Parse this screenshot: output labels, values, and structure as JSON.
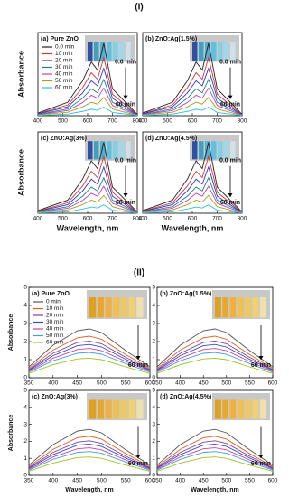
{
  "figure_labels": [
    "(I)",
    "(II)"
  ],
  "chart_data": [
    {
      "type": "line",
      "title": "(a) Pure ZnO",
      "ylabel": "Absorbance",
      "legend": true,
      "x": [
        400,
        520,
        580,
        615,
        640,
        665,
        700,
        800
      ],
      "xlim": [
        400,
        800
      ],
      "xticks": [
        400,
        500,
        600,
        700,
        800
      ],
      "ylim": [
        0,
        3.1
      ],
      "annotations": [
        "0.0 min",
        "60 min"
      ],
      "series": [
        {
          "name": "0.0 min",
          "color": "#222222",
          "values": [
            0.1,
            0.5,
            1.3,
            2.0,
            1.7,
            2.7,
            1.0,
            0.05
          ]
        },
        {
          "name": "10 min",
          "color": "#e03030",
          "values": [
            0.08,
            0.4,
            1.04,
            1.6,
            1.36,
            2.16,
            0.8,
            0.04
          ]
        },
        {
          "name": "20 min",
          "color": "#3030d0",
          "values": [
            0.07,
            0.33,
            0.85,
            1.3,
            1.11,
            1.76,
            0.65,
            0.03
          ]
        },
        {
          "name": "30 min",
          "color": "#208080",
          "values": [
            0.05,
            0.25,
            0.65,
            1.0,
            0.85,
            1.35,
            0.5,
            0.03
          ]
        },
        {
          "name": "40 min",
          "color": "#c040c0",
          "values": [
            0.04,
            0.19,
            0.49,
            0.76,
            0.65,
            1.03,
            0.38,
            0.02
          ]
        },
        {
          "name": "50 min",
          "color": "#a0a020",
          "values": [
            0.03,
            0.13,
            0.33,
            0.5,
            0.43,
            0.68,
            0.25,
            0.01
          ]
        },
        {
          "name": "60 min",
          "color": "#30c0e0",
          "values": [
            0.01,
            0.06,
            0.16,
            0.24,
            0.2,
            0.32,
            0.12,
            0.01
          ]
        }
      ]
    },
    {
      "type": "line",
      "title": "(b) ZnO:Ag(1.5%)",
      "x": [
        400,
        520,
        580,
        615,
        640,
        665,
        700,
        800
      ],
      "xlim": [
        400,
        800
      ],
      "xticks": [
        400,
        500,
        600,
        700,
        800
      ],
      "ylim": [
        0,
        3.1
      ],
      "annotations": [
        "0.0 min",
        "60 min"
      ],
      "series": [
        {
          "color": "#222222",
          "values": [
            0.1,
            0.5,
            1.3,
            2.0,
            1.7,
            2.7,
            1.0,
            0.05
          ]
        },
        {
          "color": "#e03030",
          "values": [
            0.08,
            0.4,
            1.04,
            1.6,
            1.36,
            2.16,
            0.8,
            0.04
          ]
        },
        {
          "color": "#3030d0",
          "values": [
            0.07,
            0.33,
            0.85,
            1.3,
            1.11,
            1.76,
            0.65,
            0.03
          ]
        },
        {
          "color": "#208080",
          "values": [
            0.05,
            0.25,
            0.65,
            1.0,
            0.85,
            1.35,
            0.5,
            0.03
          ]
        },
        {
          "color": "#c040c0",
          "values": [
            0.04,
            0.19,
            0.49,
            0.76,
            0.65,
            1.03,
            0.38,
            0.02
          ]
        },
        {
          "color": "#a0a020",
          "values": [
            0.03,
            0.13,
            0.33,
            0.5,
            0.43,
            0.68,
            0.25,
            0.01
          ]
        },
        {
          "color": "#30c0e0",
          "values": [
            0.01,
            0.06,
            0.16,
            0.24,
            0.2,
            0.32,
            0.12,
            0.01
          ]
        }
      ]
    },
    {
      "type": "line",
      "title": "(c) ZnO:Ag(3%)",
      "ylabel": "Absorbance",
      "xlabel": "Wavelength, nm",
      "x": [
        400,
        520,
        580,
        615,
        640,
        665,
        700,
        800
      ],
      "xlim": [
        400,
        800
      ],
      "xticks": [
        400,
        500,
        600,
        700,
        800
      ],
      "ylim": [
        0,
        3.1
      ],
      "annotations": [
        "0.0 min",
        "60 min"
      ],
      "series": [
        {
          "color": "#222222",
          "values": [
            0.1,
            0.5,
            1.3,
            2.0,
            1.7,
            2.7,
            1.0,
            0.05
          ]
        },
        {
          "color": "#e03030",
          "values": [
            0.08,
            0.4,
            1.04,
            1.6,
            1.36,
            2.16,
            0.8,
            0.04
          ]
        },
        {
          "color": "#3030d0",
          "values": [
            0.07,
            0.33,
            0.85,
            1.3,
            1.11,
            1.76,
            0.65,
            0.03
          ]
        },
        {
          "color": "#208080",
          "values": [
            0.05,
            0.25,
            0.65,
            1.0,
            0.85,
            1.35,
            0.5,
            0.03
          ]
        },
        {
          "color": "#c040c0",
          "values": [
            0.04,
            0.19,
            0.49,
            0.76,
            0.65,
            1.03,
            0.38,
            0.02
          ]
        },
        {
          "color": "#a0a020",
          "values": [
            0.03,
            0.13,
            0.33,
            0.5,
            0.43,
            0.68,
            0.25,
            0.01
          ]
        },
        {
          "color": "#30c0e0",
          "values": [
            0.01,
            0.06,
            0.16,
            0.24,
            0.2,
            0.32,
            0.12,
            0.01
          ]
        }
      ]
    },
    {
      "type": "line",
      "title": "(d) ZnO:Ag(4.5%)",
      "xlabel": "Wavelength, nm",
      "x": [
        400,
        520,
        580,
        615,
        640,
        665,
        700,
        800
      ],
      "xlim": [
        400,
        800
      ],
      "xticks": [
        400,
        500,
        600,
        700,
        800
      ],
      "ylim": [
        0,
        3.1
      ],
      "annotations": [
        "0.0 min",
        "60 min"
      ],
      "series": [
        {
          "color": "#222222",
          "values": [
            0.1,
            0.5,
            1.3,
            2.0,
            1.7,
            2.7,
            1.0,
            0.05
          ]
        },
        {
          "color": "#e03030",
          "values": [
            0.08,
            0.4,
            1.04,
            1.6,
            1.36,
            2.16,
            0.8,
            0.04
          ]
        },
        {
          "color": "#3030d0",
          "values": [
            0.07,
            0.33,
            0.85,
            1.3,
            1.11,
            1.76,
            0.65,
            0.03
          ]
        },
        {
          "color": "#208080",
          "values": [
            0.05,
            0.25,
            0.65,
            1.0,
            0.85,
            1.35,
            0.5,
            0.03
          ]
        },
        {
          "color": "#c040c0",
          "values": [
            0.04,
            0.19,
            0.49,
            0.76,
            0.65,
            1.03,
            0.38,
            0.02
          ]
        },
        {
          "color": "#a0a020",
          "values": [
            0.03,
            0.13,
            0.33,
            0.5,
            0.43,
            0.68,
            0.25,
            0.01
          ]
        },
        {
          "color": "#30c0e0",
          "values": [
            0.01,
            0.06,
            0.16,
            0.24,
            0.2,
            0.32,
            0.12,
            0.01
          ]
        }
      ]
    },
    {
      "type": "line",
      "title": "(a) Pure ZnO",
      "ylabel": "Absorbance",
      "legend": true,
      "x": [
        350,
        400,
        450,
        475,
        500,
        550,
        600
      ],
      "xlim": [
        350,
        600
      ],
      "xticks": [
        350,
        400,
        450,
        500,
        550,
        600
      ],
      "ylim": [
        0,
        5
      ],
      "yticks": [
        0,
        1,
        2,
        3,
        4,
        5
      ],
      "annotations": [
        "60 min"
      ],
      "series": [
        {
          "name": "0  min",
          "color": "#555555",
          "values": [
            0.6,
            1.8,
            2.6,
            2.7,
            2.5,
            1.5,
            0.6
          ]
        },
        {
          "name": "10 min",
          "color": "#e06020",
          "values": [
            0.51,
            1.53,
            2.21,
            2.3,
            2.13,
            1.28,
            0.51
          ]
        },
        {
          "name": "20 min",
          "color": "#8040a0",
          "values": [
            0.45,
            1.35,
            1.95,
            2.03,
            1.88,
            1.13,
            0.45
          ]
        },
        {
          "name": "30 min",
          "color": "#3050c0",
          "values": [
            0.41,
            1.22,
            1.77,
            1.84,
            1.7,
            1.02,
            0.41
          ]
        },
        {
          "name": "40 min",
          "color": "#d040a0",
          "values": [
            0.36,
            1.08,
            1.56,
            1.62,
            1.5,
            0.9,
            0.36
          ]
        },
        {
          "name": "50 min",
          "color": "#40a0e0",
          "values": [
            0.31,
            0.94,
            1.35,
            1.4,
            1.3,
            0.78,
            0.31
          ]
        },
        {
          "name": "60 min",
          "color": "#a0c020",
          "values": [
            0.24,
            0.72,
            1.04,
            1.08,
            1.0,
            0.6,
            0.24
          ]
        }
      ]
    },
    {
      "type": "line",
      "title": "(b) ZnO:Ag(1.5%)",
      "x": [
        350,
        400,
        450,
        475,
        500,
        550,
        600
      ],
      "xlim": [
        350,
        600
      ],
      "xticks": [
        350,
        400,
        450,
        500,
        550,
        600
      ],
      "ylim": [
        0,
        5
      ],
      "yticks": [
        0,
        1,
        2,
        3,
        4,
        5
      ],
      "annotations": [
        "60 min"
      ],
      "series": [
        {
          "color": "#555555",
          "values": [
            0.6,
            1.8,
            2.6,
            2.7,
            2.5,
            1.5,
            0.6
          ]
        },
        {
          "color": "#e06020",
          "values": [
            0.51,
            1.53,
            2.21,
            2.3,
            2.13,
            1.28,
            0.51
          ]
        },
        {
          "color": "#8040a0",
          "values": [
            0.45,
            1.35,
            1.95,
            2.03,
            1.88,
            1.13,
            0.45
          ]
        },
        {
          "color": "#3050c0",
          "values": [
            0.41,
            1.22,
            1.77,
            1.84,
            1.7,
            1.02,
            0.41
          ]
        },
        {
          "color": "#d040a0",
          "values": [
            0.36,
            1.08,
            1.56,
            1.62,
            1.5,
            0.9,
            0.36
          ]
        },
        {
          "color": "#40a0e0",
          "values": [
            0.31,
            0.94,
            1.35,
            1.4,
            1.3,
            0.78,
            0.31
          ]
        },
        {
          "color": "#a0c020",
          "values": [
            0.24,
            0.72,
            1.04,
            1.08,
            1.0,
            0.6,
            0.24
          ]
        }
      ]
    },
    {
      "type": "line",
      "title": "(c) ZnO:Ag(3%)",
      "ylabel": "Absorbance",
      "xlabel": "Wavelength, nm",
      "x": [
        350,
        400,
        450,
        475,
        500,
        550,
        600
      ],
      "xlim": [
        350,
        600
      ],
      "xticks": [
        350,
        400,
        450,
        500,
        550,
        600
      ],
      "ylim": [
        0,
        5
      ],
      "yticks": [
        0,
        1,
        2,
        3,
        4,
        5
      ],
      "annotations": [
        "60 min"
      ],
      "series": [
        {
          "color": "#555555",
          "values": [
            0.6,
            1.8,
            2.6,
            2.7,
            2.5,
            1.5,
            0.6
          ]
        },
        {
          "color": "#e06020",
          "values": [
            0.51,
            1.53,
            2.21,
            2.3,
            2.13,
            1.28,
            0.51
          ]
        },
        {
          "color": "#8040a0",
          "values": [
            0.45,
            1.35,
            1.95,
            2.03,
            1.88,
            1.13,
            0.45
          ]
        },
        {
          "color": "#3050c0",
          "values": [
            0.41,
            1.22,
            1.77,
            1.84,
            1.7,
            1.02,
            0.41
          ]
        },
        {
          "color": "#d040a0",
          "values": [
            0.36,
            1.08,
            1.56,
            1.62,
            1.5,
            0.9,
            0.36
          ]
        },
        {
          "color": "#40a0e0",
          "values": [
            0.31,
            0.94,
            1.35,
            1.4,
            1.3,
            0.78,
            0.31
          ]
        },
        {
          "color": "#a0c020",
          "values": [
            0.24,
            0.72,
            1.04,
            1.08,
            1.0,
            0.6,
            0.24
          ]
        }
      ]
    },
    {
      "type": "line",
      "title": "(d) ZnO:Ag(4.5%)",
      "xlabel": "Wavelength, nm",
      "x": [
        350,
        400,
        450,
        475,
        500,
        550,
        600
      ],
      "xlim": [
        350,
        600
      ],
      "xticks": [
        350,
        400,
        450,
        500,
        550,
        600
      ],
      "ylim": [
        0,
        5
      ],
      "yticks": [
        0,
        1,
        2,
        3,
        4,
        5
      ],
      "annotations": [
        "60 min"
      ],
      "series": [
        {
          "color": "#555555",
          "values": [
            0.6,
            1.8,
            2.6,
            2.7,
            2.5,
            1.5,
            0.6
          ]
        },
        {
          "color": "#e06020",
          "values": [
            0.51,
            1.53,
            2.21,
            2.3,
            2.13,
            1.28,
            0.51
          ]
        },
        {
          "color": "#8040a0",
          "values": [
            0.45,
            1.35,
            1.95,
            2.03,
            1.88,
            1.13,
            0.45
          ]
        },
        {
          "color": "#3050c0",
          "values": [
            0.41,
            1.22,
            1.77,
            1.84,
            1.7,
            1.02,
            0.41
          ]
        },
        {
          "color": "#d040a0",
          "values": [
            0.36,
            1.08,
            1.56,
            1.62,
            1.5,
            0.9,
            0.36
          ]
        },
        {
          "color": "#40a0e0",
          "values": [
            0.31,
            0.94,
            1.35,
            1.4,
            1.3,
            0.78,
            0.31
          ]
        },
        {
          "color": "#a0c020",
          "values": [
            0.24,
            0.72,
            1.04,
            1.08,
            1.0,
            0.6,
            0.24
          ]
        }
      ]
    }
  ]
}
